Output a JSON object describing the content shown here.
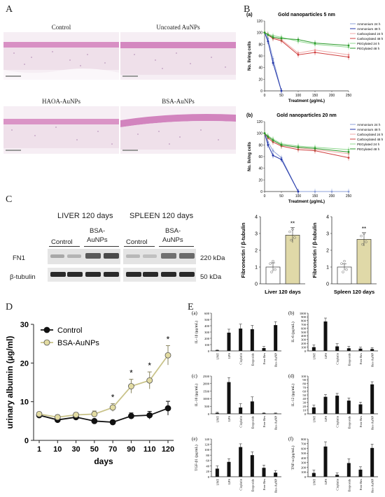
{
  "panelA": {
    "label": "A",
    "images": [
      {
        "caption": "Control"
      },
      {
        "caption": "Uncoated AuNPs"
      },
      {
        "caption": "HAOA-AuNPs"
      },
      {
        "caption": "BSA-AuNPs"
      }
    ]
  },
  "panelB": {
    "label": "B",
    "ylabel": "No. living cells",
    "xlabel": "Treatment (µg/mL)",
    "legend": [
      "Ammonium 24 h",
      "Ammonium 48 h",
      "Carboxylated 24 h",
      "Carboxylated 48 h",
      "PEGylated 24 h",
      "PEGylated 48 h"
    ],
    "colors": [
      "#8ea0d8",
      "#2235a8",
      "#f0a8a8",
      "#d04040",
      "#8fd88f",
      "#2a9a2a"
    ],
    "a": {
      "tag": "(a)",
      "title": "Gold nanoparticles 5 nm"
    },
    "b": {
      "tag": "(b)",
      "title": "Gold nanoparticles 20 nm"
    }
  },
  "panelC": {
    "label": "C",
    "liver_title": "LIVER 120 days",
    "spleen_title": "SPLEEN 120 days",
    "control": "Control",
    "bsa_line1": "BSA-",
    "bsa_line2": "AuNPs",
    "fn1": "FN1",
    "tubulin": "β-tubulin",
    "kda220": "220 kDa",
    "kda50": "50 kDa",
    "bar_ylabel": "Fibronectin / β-tubulin",
    "liver_xlabel": "Liver 120 days",
    "spleen_xlabel": "Spleen 120 days",
    "sig": "**"
  },
  "panelD": {
    "label": "D"
  },
  "panelE": {
    "label": "E"
  },
  "chart_data": [
    {
      "type": "line",
      "title": "Gold nanoparticles 5 nm",
      "xlabel": "Treatment (µg/mL)",
      "ylabel": "No. living cells",
      "xlim": [
        0,
        250
      ],
      "ylim": [
        0,
        120
      ],
      "series": [
        {
          "name": "Ammonium 24 h",
          "x": [
            0,
            10,
            25,
            50
          ],
          "y": [
            100,
            90,
            55,
            0
          ]
        },
        {
          "name": "Ammonium 48 h",
          "x": [
            0,
            10,
            25,
            50
          ],
          "y": [
            100,
            85,
            48,
            0
          ]
        },
        {
          "name": "Carboxylated 24 h",
          "x": [
            0,
            10,
            25,
            50,
            100,
            150,
            250
          ],
          "y": [
            100,
            98,
            92,
            88,
            65,
            70,
            62
          ]
        },
        {
          "name": "Carboxylated 48 h",
          "x": [
            0,
            10,
            25,
            50,
            100,
            150,
            250
          ],
          "y": [
            100,
            96,
            90,
            86,
            62,
            66,
            58
          ]
        },
        {
          "name": "PEGylated 24 h",
          "x": [
            0,
            10,
            25,
            50,
            100,
            150,
            250
          ],
          "y": [
            100,
            97,
            95,
            92,
            85,
            80,
            75
          ]
        },
        {
          "name": "PEGylated 48 h",
          "x": [
            0,
            10,
            25,
            50,
            100,
            150,
            250
          ],
          "y": [
            100,
            96,
            92,
            90,
            88,
            82,
            78
          ]
        }
      ]
    },
    {
      "type": "line",
      "title": "Gold nanoparticles 20 nm",
      "xlabel": "Treatment (µg/mL)",
      "ylabel": "No. living cells",
      "xlim": [
        0,
        250
      ],
      "ylim": [
        0,
        120
      ],
      "series": [
        {
          "name": "Ammonium 24 h",
          "x": [
            0,
            10,
            25,
            50,
            100,
            150,
            200,
            250
          ],
          "y": [
            100,
            85,
            70,
            58,
            0,
            0,
            0,
            0
          ]
        },
        {
          "name": "Ammonium 48 h",
          "x": [
            0,
            10,
            25,
            50,
            100
          ],
          "y": [
            100,
            80,
            62,
            55,
            0
          ]
        },
        {
          "name": "Carboxylated 24 h",
          "x": [
            0,
            10,
            25,
            50,
            100,
            150,
            250
          ],
          "y": [
            100,
            95,
            88,
            80,
            75,
            72,
            65
          ]
        },
        {
          "name": "Carboxylated 48 h",
          "x": [
            0,
            10,
            25,
            50,
            100,
            150,
            250
          ],
          "y": [
            100,
            92,
            85,
            78,
            72,
            70,
            58
          ]
        },
        {
          "name": "PEGylated 24 h",
          "x": [
            0,
            10,
            25,
            50,
            100,
            150,
            250
          ],
          "y": [
            100,
            96,
            90,
            82,
            78,
            76,
            72
          ]
        },
        {
          "name": "PEGylated 48 h",
          "x": [
            0,
            10,
            25,
            50,
            100,
            150,
            250
          ],
          "y": [
            100,
            94,
            88,
            80,
            76,
            74,
            68
          ]
        }
      ]
    },
    {
      "type": "bar",
      "xlabel": "Liver 120 days",
      "ylabel": "Fibronectin / β-tubulin",
      "ylim": [
        0,
        4
      ],
      "categories": [
        "Control",
        "BSA-AuNPs"
      ],
      "values": [
        1.0,
        2.9
      ],
      "errors": [
        0.25,
        0.45
      ],
      "ticks": [
        "0",
        "1",
        "2",
        "3",
        "4"
      ]
    },
    {
      "type": "bar",
      "xlabel": "Spleen 120 days",
      "ylabel": "Fibronectin / β-tubulin",
      "ylim": [
        0,
        4
      ],
      "categories": [
        "Control",
        "BSA-AuNPs"
      ],
      "values": [
        1.0,
        2.65
      ],
      "errors": [
        0.2,
        0.4
      ],
      "ticks": [
        "0",
        "1",
        "2",
        "3",
        "4"
      ]
    },
    {
      "type": "line",
      "xlabel": "days",
      "ylabel": "urinary albumin (µg/ml)",
      "ylim": [
        0,
        30
      ],
      "categories": [
        "1",
        "10",
        "30",
        "50",
        "70",
        "90",
        "110",
        "120"
      ],
      "yticks": [
        "0",
        "10",
        "20",
        "30"
      ],
      "series": [
        {
          "name": "Control",
          "values": [
            6.5,
            5.3,
            6.0,
            5.0,
            4.7,
            6.3,
            6.5,
            8.3
          ],
          "errors": [
            0.5,
            0.5,
            0.6,
            0.5,
            0.5,
            0.8,
            1.0,
            1.8
          ]
        },
        {
          "name": "BSA-AuNPs",
          "values": [
            6.8,
            6.0,
            6.6,
            6.8,
            8.5,
            14.0,
            15.5,
            22.0
          ],
          "errors": [
            0.5,
            0.6,
            0.6,
            0.8,
            1.0,
            1.8,
            2.2,
            2.5
          ]
        }
      ],
      "significance": [
        "",
        "",
        "",
        "",
        "*",
        "*",
        "*",
        "*"
      ]
    },
    {
      "type": "bar",
      "tag": "(a)",
      "ylabel": "IL-1β (pg/mL)",
      "ylim": [
        0,
        600
      ],
      "yticks": [
        "0",
        "100",
        "200",
        "300",
        "400",
        "500",
        "600"
      ],
      "categories": [
        "UNT",
        "LPS",
        "Cisplatin",
        "Etoposide",
        "Free Res",
        "Res-AuNP"
      ],
      "values": [
        10,
        290,
        355,
        345,
        45,
        410
      ],
      "errors": [
        5,
        55,
        70,
        60,
        25,
        55
      ]
    },
    {
      "type": "bar",
      "tag": "(b)",
      "ylabel": "IL-6 (pg/mL)",
      "ylim": [
        0,
        1000
      ],
      "yticks": [
        "0",
        "100",
        "200",
        "300",
        "400",
        "500",
        "600",
        "700",
        "800",
        "900",
        "1000"
      ],
      "categories": [
        "UNT",
        "LPS",
        "Cisplatin",
        "Etoposide",
        "Free Res",
        "Res-AuNP"
      ],
      "values": [
        100,
        780,
        120,
        70,
        60,
        50
      ],
      "errors": [
        60,
        90,
        70,
        50,
        40,
        35
      ]
    },
    {
      "type": "bar",
      "tag": "(c)",
      "ylabel": "IL-10 (pg/mL)",
      "ylim": [
        0,
        2500
      ],
      "yticks": [
        "0",
        "500",
        "1000",
        "1500",
        "2000",
        "2500"
      ],
      "categories": [
        "UNT",
        "LPS",
        "Cisplatin",
        "Etoposide",
        "Free Res",
        "Res-AuNP"
      ],
      "values": [
        60,
        2100,
        420,
        820,
        40,
        30
      ],
      "errors": [
        40,
        300,
        250,
        300,
        30,
        25
      ]
    },
    {
      "type": "bar",
      "tag": "(d)",
      "ylabel": "IL-12 (pg/mL)",
      "ylim": [
        0,
        100
      ],
      "yticks": [
        "0",
        "10",
        "20",
        "30",
        "40",
        "50",
        "60",
        "70",
        "80",
        "90",
        "100"
      ],
      "categories": [
        "UNT",
        "LPS",
        "Cisplatin",
        "Etoposide",
        "Free Res",
        "Res-AuNP"
      ],
      "values": [
        17,
        45,
        48,
        35,
        25,
        78
      ],
      "errors": [
        6,
        6,
        6,
        7,
        6,
        7
      ]
    },
    {
      "type": "bar",
      "tag": "(e)",
      "ylabel": "TGF-β1 (pg/mL)",
      "ylim": [
        0,
        140
      ],
      "yticks": [
        "0",
        "20",
        "40",
        "60",
        "80",
        "100",
        "120",
        "140"
      ],
      "categories": [
        "UNT",
        "LPS",
        "Cisplatin",
        "Etoposide",
        "Free Res",
        "Res-AuNP"
      ],
      "values": [
        30,
        55,
        110,
        80,
        33,
        15
      ],
      "errors": [
        10,
        12,
        12,
        12,
        10,
        8
      ]
    },
    {
      "type": "bar",
      "tag": "(f)",
      "ylabel": "TNF-α (pg/mL)",
      "ylim": [
        0,
        800
      ],
      "yticks": [
        "0",
        "100",
        "200",
        "300",
        "400",
        "500",
        "600",
        "700",
        "800"
      ],
      "categories": [
        "UNT",
        "LPS",
        "Cisplatin",
        "Etoposide",
        "Free Res",
        "Res-AuNP"
      ],
      "values": [
        80,
        640,
        40,
        290,
        150,
        610
      ],
      "errors": [
        60,
        100,
        40,
        90,
        60,
        80
      ]
    }
  ]
}
